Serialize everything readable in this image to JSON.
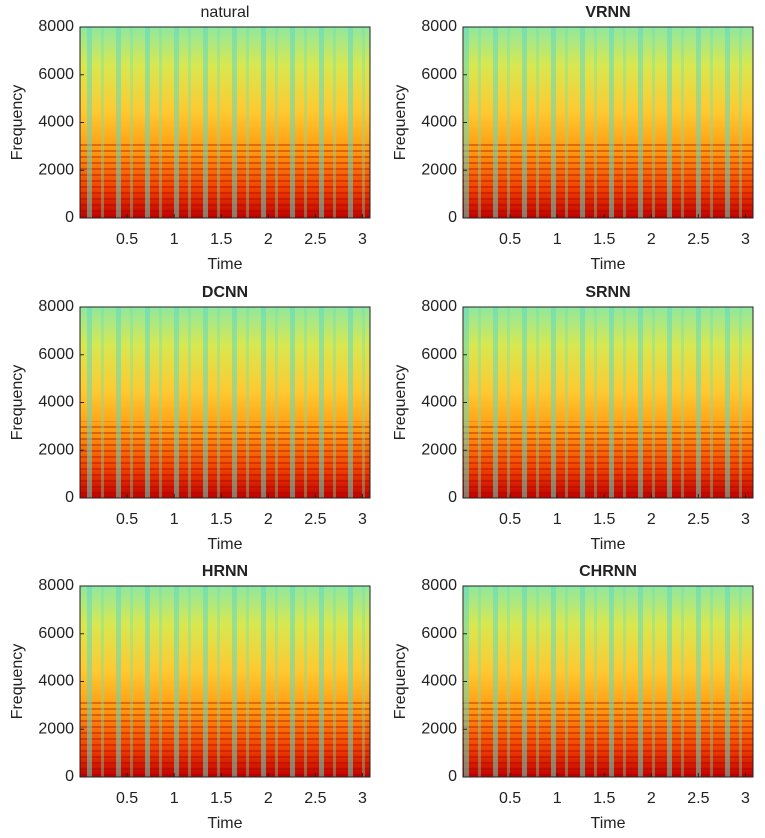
{
  "chart_data": [
    {
      "type": "spectrogram",
      "title": "natural",
      "title_weight": "normal",
      "xlabel": "Time",
      "ylabel": "Frequency",
      "xlim": [
        0,
        3.08
      ],
      "xticks": [
        0.5,
        1,
        1.5,
        2,
        2.5,
        3
      ],
      "ylim": [
        0,
        8000
      ],
      "yticks": [
        0,
        2000,
        4000,
        6000,
        8000
      ]
    },
    {
      "type": "spectrogram",
      "title": "VRNN",
      "title_weight": "bold",
      "xlabel": "Time",
      "ylabel": "Frequency",
      "xlim": [
        0,
        3.08
      ],
      "xticks": [
        0.5,
        1,
        1.5,
        2,
        2.5,
        3
      ],
      "ylim": [
        0,
        8000
      ],
      "yticks": [
        0,
        2000,
        4000,
        6000,
        8000
      ]
    },
    {
      "type": "spectrogram",
      "title": "DCNN",
      "title_weight": "bold",
      "xlabel": "Time",
      "ylabel": "Frequency",
      "xlim": [
        0,
        3.08
      ],
      "xticks": [
        0.5,
        1,
        1.5,
        2,
        2.5,
        3
      ],
      "ylim": [
        0,
        8000
      ],
      "yticks": [
        0,
        2000,
        4000,
        6000,
        8000
      ]
    },
    {
      "type": "spectrogram",
      "title": "SRNN",
      "title_weight": "bold",
      "xlabel": "Time",
      "ylabel": "Frequency",
      "xlim": [
        0,
        3.08
      ],
      "xticks": [
        0.5,
        1,
        1.5,
        2,
        2.5,
        3
      ],
      "ylim": [
        0,
        8000
      ],
      "yticks": [
        0,
        2000,
        4000,
        6000,
        8000
      ]
    },
    {
      "type": "spectrogram",
      "title": "HRNN",
      "title_weight": "bold",
      "xlabel": "Time",
      "ylabel": "Frequency",
      "xlim": [
        0,
        3.08
      ],
      "xticks": [
        0.5,
        1,
        1.5,
        2,
        2.5,
        3
      ],
      "ylim": [
        0,
        8000
      ],
      "yticks": [
        0,
        2000,
        4000,
        6000,
        8000
      ]
    },
    {
      "type": "spectrogram",
      "title": "CHRNN",
      "title_weight": "bold",
      "xlabel": "Time",
      "ylabel": "Frequency",
      "xlim": [
        0,
        3.08
      ],
      "xticks": [
        0.5,
        1,
        1.5,
        2,
        2.5,
        3
      ],
      "ylim": [
        0,
        8000
      ],
      "yticks": [
        0,
        2000,
        4000,
        6000,
        8000
      ]
    }
  ]
}
